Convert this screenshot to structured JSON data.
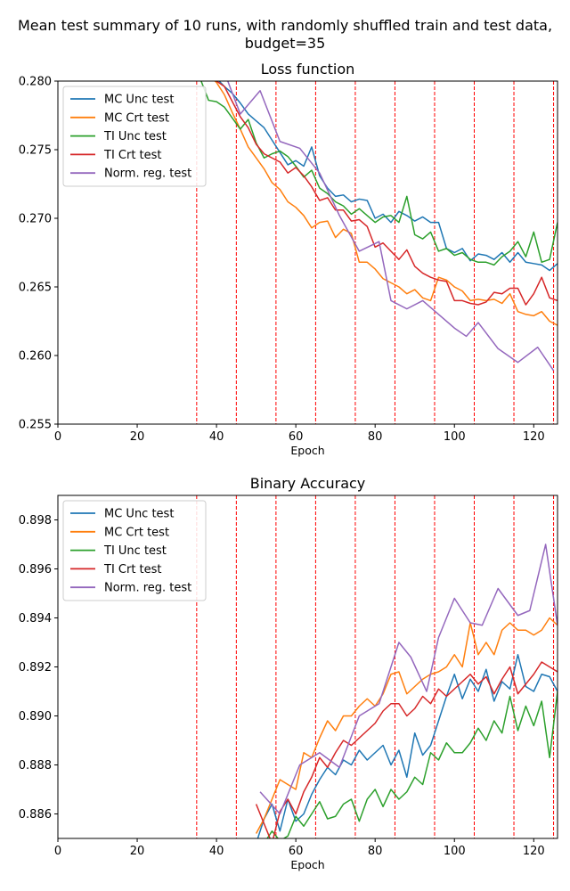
{
  "figure_title_line1": "Mean test summary of 10 runs, with randomly shuffled train and test data,",
  "figure_title_line2": "budget=35",
  "colors": {
    "MC Unc test": "#1f77b4",
    "MC Crt test": "#ff7f0e",
    "TI Unc test": "#2ca02c",
    "TI Crt test": "#d62728",
    "Norm. reg. test": "#9467bd",
    "vline": "#ff0000"
  },
  "chart_data": [
    {
      "type": "line",
      "title": "Loss function",
      "xlabel": "Epoch",
      "ylabel": "",
      "xlim": [
        0,
        126
      ],
      "ylim": [
        0.255,
        0.28
      ],
      "xticks": [
        "0",
        "20",
        "40",
        "60",
        "80",
        "100",
        "120"
      ],
      "yticks": [
        "0.255",
        "0.260",
        "0.265",
        "0.270",
        "0.275",
        "0.280"
      ],
      "vlines": [
        35,
        45,
        55,
        65,
        75,
        85,
        95,
        105,
        115,
        125
      ],
      "legend": "top-left",
      "grid": false,
      "series": [
        {
          "name": "MC Unc test",
          "x": [
            36,
            38,
            40,
            42,
            44,
            46,
            48,
            50,
            52,
            54,
            56,
            58,
            60,
            62,
            64,
            66,
            68,
            70,
            72,
            74,
            76,
            78,
            80,
            82,
            84,
            86,
            88,
            90,
            92,
            94,
            96,
            98,
            100,
            102,
            104,
            106,
            108,
            110,
            112,
            114,
            116,
            118,
            120,
            122,
            124,
            126
          ],
          "y": [
            0.2815,
            0.2808,
            0.2802,
            0.2796,
            0.2791,
            0.2784,
            0.2776,
            0.2771,
            0.2766,
            0.2757,
            0.2748,
            0.2739,
            0.2742,
            0.2738,
            0.2752,
            0.2731,
            0.2722,
            0.2716,
            0.2717,
            0.2712,
            0.2714,
            0.2713,
            0.27,
            0.2703,
            0.2697,
            0.2705,
            0.2702,
            0.2698,
            0.2701,
            0.2697,
            0.2697,
            0.2678,
            0.2675,
            0.2678,
            0.2669,
            0.2674,
            0.2673,
            0.267,
            0.2675,
            0.2668,
            0.2675,
            0.2668,
            0.2667,
            0.2666,
            0.2662,
            0.2667
          ]
        },
        {
          "name": "MC Crt test",
          "x": [
            36,
            38,
            40,
            42,
            44,
            46,
            48,
            50,
            52,
            54,
            56,
            58,
            60,
            62,
            64,
            66,
            68,
            70,
            72,
            74,
            76,
            78,
            80,
            82,
            84,
            86,
            88,
            90,
            92,
            94,
            96,
            98,
            100,
            102,
            104,
            106,
            108,
            110,
            112,
            114,
            116,
            118,
            120,
            122,
            124,
            126
          ],
          "y": [
            0.281,
            0.2804,
            0.2799,
            0.279,
            0.2777,
            0.2765,
            0.2752,
            0.2744,
            0.2736,
            0.2726,
            0.2721,
            0.2712,
            0.2708,
            0.2702,
            0.2693,
            0.2697,
            0.2698,
            0.2686,
            0.2692,
            0.2689,
            0.2668,
            0.2668,
            0.2663,
            0.2656,
            0.2653,
            0.265,
            0.2645,
            0.2648,
            0.2642,
            0.264,
            0.2657,
            0.2655,
            0.265,
            0.2647,
            0.264,
            0.2641,
            0.264,
            0.2641,
            0.2638,
            0.2645,
            0.2632,
            0.263,
            0.2629,
            0.2632,
            0.2625,
            0.2622
          ]
        },
        {
          "name": "TI Unc test",
          "x": [
            36,
            38,
            40,
            42,
            44,
            46,
            48,
            50,
            52,
            54,
            56,
            58,
            60,
            62,
            64,
            66,
            68,
            70,
            72,
            74,
            76,
            78,
            80,
            82,
            84,
            86,
            88,
            90,
            92,
            94,
            96,
            98,
            100,
            102,
            104,
            106,
            108,
            110,
            112,
            114,
            116,
            118,
            120,
            122,
            124,
            126
          ],
          "y": [
            0.2801,
            0.2786,
            0.2785,
            0.2781,
            0.2773,
            0.2765,
            0.2772,
            0.2755,
            0.2744,
            0.2747,
            0.2749,
            0.2745,
            0.2738,
            0.273,
            0.2735,
            0.2722,
            0.2718,
            0.2712,
            0.2709,
            0.2703,
            0.2707,
            0.2702,
            0.2697,
            0.2701,
            0.2702,
            0.2697,
            0.2716,
            0.2688,
            0.2685,
            0.269,
            0.2676,
            0.2678,
            0.2673,
            0.2675,
            0.267,
            0.2668,
            0.2668,
            0.2666,
            0.2672,
            0.2676,
            0.2683,
            0.2672,
            0.269,
            0.2668,
            0.267,
            0.2697
          ]
        },
        {
          "name": "TI Crt test",
          "x": [
            36,
            38,
            40,
            42,
            44,
            46,
            48,
            50,
            52,
            54,
            56,
            58,
            60,
            62,
            64,
            66,
            68,
            70,
            72,
            74,
            76,
            78,
            80,
            82,
            84,
            86,
            88,
            90,
            92,
            94,
            96,
            98,
            100,
            102,
            104,
            106,
            108,
            110,
            112,
            114,
            116,
            118,
            120,
            122,
            124,
            126
          ],
          "y": [
            0.2814,
            0.2808,
            0.28,
            0.2796,
            0.2785,
            0.2774,
            0.2766,
            0.2754,
            0.2747,
            0.2744,
            0.2741,
            0.2733,
            0.2737,
            0.2731,
            0.2723,
            0.2713,
            0.2715,
            0.2706,
            0.2706,
            0.2698,
            0.2699,
            0.2694,
            0.2679,
            0.2682,
            0.2676,
            0.267,
            0.2677,
            0.2665,
            0.266,
            0.2657,
            0.2655,
            0.2654,
            0.264,
            0.264,
            0.2638,
            0.2637,
            0.2639,
            0.2646,
            0.2645,
            0.2649,
            0.2649,
            0.2637,
            0.2645,
            0.2657,
            0.2642,
            0.264
          ]
        },
        {
          "name": "Norm. reg. test",
          "x": [
            41,
            46,
            51,
            56,
            61,
            66,
            71,
            76,
            81,
            84,
            88,
            92,
            96,
            100,
            103,
            106,
            111,
            116,
            121,
            125
          ],
          "y": [
            0.2814,
            0.2776,
            0.2793,
            0.2756,
            0.2751,
            0.2733,
            0.2702,
            0.2676,
            0.2683,
            0.264,
            0.2634,
            0.264,
            0.263,
            0.262,
            0.2614,
            0.2624,
            0.2605,
            0.2595,
            0.2606,
            0.2589
          ]
        }
      ]
    },
    {
      "type": "line",
      "title": "Binary Accuracy",
      "xlabel": "Epoch",
      "ylabel": "",
      "xlim": [
        0,
        126
      ],
      "ylim": [
        0.885,
        0.899
      ],
      "xticks": [
        "0",
        "20",
        "40",
        "60",
        "80",
        "100",
        "120"
      ],
      "yticks": [
        "0.886",
        "0.888",
        "0.890",
        "0.892",
        "0.894",
        "0.896",
        "0.898"
      ],
      "vlines": [
        35,
        45,
        55,
        65,
        75,
        85,
        95,
        105,
        115,
        125
      ],
      "legend": "top-left",
      "grid": false,
      "series": [
        {
          "name": "MC Unc test",
          "x": [
            50,
            52,
            54,
            56,
            58,
            60,
            62,
            64,
            66,
            68,
            70,
            72,
            74,
            76,
            78,
            80,
            82,
            84,
            86,
            88,
            90,
            92,
            94,
            96,
            98,
            100,
            102,
            104,
            106,
            108,
            110,
            112,
            114,
            116,
            118,
            120,
            122,
            124,
            126
          ],
          "y": [
            0.8848,
            0.8858,
            0.8864,
            0.8853,
            0.8866,
            0.8857,
            0.886,
            0.8868,
            0.8874,
            0.8879,
            0.8876,
            0.8882,
            0.888,
            0.8886,
            0.8882,
            0.8885,
            0.8888,
            0.888,
            0.8886,
            0.8875,
            0.8893,
            0.8884,
            0.8888,
            0.8898,
            0.8908,
            0.8917,
            0.8907,
            0.8915,
            0.891,
            0.8919,
            0.8906,
            0.8914,
            0.8911,
            0.8925,
            0.8912,
            0.891,
            0.8917,
            0.8916,
            0.891
          ]
        },
        {
          "name": "MC Crt test",
          "x": [
            50,
            52,
            54,
            56,
            58,
            60,
            62,
            64,
            66,
            68,
            70,
            72,
            74,
            76,
            78,
            80,
            82,
            84,
            86,
            88,
            90,
            92,
            94,
            96,
            98,
            100,
            102,
            104,
            106,
            108,
            110,
            112,
            114,
            116,
            118,
            120,
            122,
            124,
            126
          ],
          "y": [
            0.8852,
            0.8858,
            0.8866,
            0.8874,
            0.8872,
            0.887,
            0.8885,
            0.8883,
            0.8891,
            0.8898,
            0.8894,
            0.89,
            0.89,
            0.8904,
            0.8907,
            0.8904,
            0.8909,
            0.8917,
            0.8918,
            0.8909,
            0.8912,
            0.8915,
            0.8917,
            0.8918,
            0.892,
            0.8925,
            0.892,
            0.8938,
            0.8925,
            0.893,
            0.8925,
            0.8935,
            0.8938,
            0.8935,
            0.8935,
            0.8933,
            0.8935,
            0.894,
            0.8937
          ]
        },
        {
          "name": "TI Unc test",
          "x": [
            50,
            52,
            54,
            56,
            58,
            60,
            62,
            64,
            66,
            68,
            70,
            72,
            74,
            76,
            78,
            80,
            82,
            84,
            86,
            88,
            90,
            92,
            94,
            96,
            98,
            100,
            102,
            104,
            106,
            108,
            110,
            112,
            114,
            116,
            118,
            120,
            122,
            124,
            126
          ],
          "y": [
            0.8844,
            0.8848,
            0.8853,
            0.8849,
            0.8851,
            0.8859,
            0.8855,
            0.886,
            0.8865,
            0.8858,
            0.8859,
            0.8864,
            0.8866,
            0.8857,
            0.8866,
            0.887,
            0.8863,
            0.887,
            0.8866,
            0.8869,
            0.8875,
            0.8872,
            0.8885,
            0.8882,
            0.8889,
            0.8885,
            0.8885,
            0.8889,
            0.8895,
            0.889,
            0.8898,
            0.8893,
            0.8908,
            0.8894,
            0.8904,
            0.8896,
            0.8906,
            0.8883,
            0.891
          ]
        },
        {
          "name": "TI Crt test",
          "x": [
            50,
            52,
            54,
            56,
            58,
            60,
            62,
            64,
            66,
            68,
            70,
            72,
            74,
            76,
            78,
            80,
            82,
            84,
            86,
            88,
            90,
            92,
            94,
            96,
            98,
            100,
            102,
            104,
            106,
            108,
            110,
            112,
            114,
            116,
            118,
            120,
            122,
            124,
            126
          ],
          "y": [
            0.8864,
            0.8856,
            0.8848,
            0.8861,
            0.8866,
            0.886,
            0.8869,
            0.8875,
            0.8883,
            0.8879,
            0.8885,
            0.889,
            0.8888,
            0.8891,
            0.8894,
            0.8897,
            0.8902,
            0.8905,
            0.8905,
            0.89,
            0.8903,
            0.8908,
            0.8905,
            0.8911,
            0.8908,
            0.8911,
            0.8914,
            0.8917,
            0.8913,
            0.8916,
            0.8909,
            0.8915,
            0.892,
            0.8909,
            0.8913,
            0.8917,
            0.8922,
            0.892,
            0.8918
          ]
        },
        {
          "name": "Norm. reg. test",
          "x": [
            51,
            56,
            61,
            66,
            71,
            76,
            81,
            86,
            89,
            93,
            96,
            100,
            104,
            107,
            111,
            116,
            119,
            123,
            126
          ],
          "y": [
            0.8869,
            0.886,
            0.888,
            0.8885,
            0.8879,
            0.89,
            0.8905,
            0.893,
            0.8924,
            0.891,
            0.8932,
            0.8948,
            0.8938,
            0.8937,
            0.8952,
            0.8941,
            0.8943,
            0.897,
            0.8937
          ]
        }
      ]
    }
  ]
}
